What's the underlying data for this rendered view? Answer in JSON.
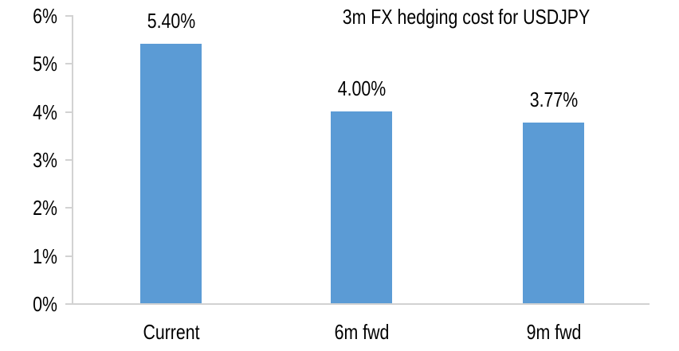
{
  "chart_data": {
    "type": "bar",
    "title": "3m FX hedging cost for USDJPY",
    "categories": [
      "Current",
      "6m fwd",
      "9m fwd"
    ],
    "values": [
      5.4,
      4.0,
      3.77
    ],
    "data_labels": [
      "5.40%",
      "4.00%",
      "3.77%"
    ],
    "xlabel": "",
    "ylabel": "",
    "ylim": [
      0,
      6
    ],
    "y_tick_labels": [
      "0%",
      "1%",
      "2%",
      "3%",
      "4%",
      "5%",
      "6%"
    ],
    "grid": false,
    "legend_position": "none",
    "colors": {
      "bar": "#5B9BD5",
      "axis": "#D2D2D2",
      "text": "#000000",
      "background": "#FFFFFF"
    }
  }
}
